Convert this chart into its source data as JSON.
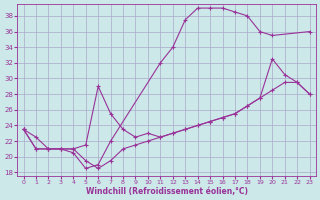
{
  "xlabel": "Windchill (Refroidissement éolien,°C)",
  "bg_color": "#cce8e8",
  "grid_color": "#aaaacc",
  "line_color": "#993399",
  "xlim": [
    -0.5,
    23.5
  ],
  "ylim": [
    17.5,
    39.5
  ],
  "yticks": [
    18,
    20,
    22,
    24,
    26,
    28,
    30,
    32,
    34,
    36,
    38
  ],
  "xticks": [
    0,
    1,
    2,
    3,
    4,
    5,
    6,
    7,
    8,
    9,
    10,
    11,
    12,
    13,
    14,
    15,
    16,
    17,
    18,
    19,
    20,
    21,
    22,
    23
  ],
  "curve1_x": [
    0,
    1,
    2,
    3,
    4,
    5,
    6,
    7,
    11,
    12,
    13,
    14,
    15,
    16,
    17,
    18,
    19,
    20,
    23
  ],
  "curve1_y": [
    23.5,
    22.5,
    21.0,
    21.0,
    20.5,
    18.5,
    19.0,
    22.0,
    32.0,
    34.0,
    37.5,
    39.0,
    39.0,
    39.0,
    38.5,
    38.0,
    36.0,
    35.5,
    36.0
  ],
  "curve2_x": [
    0,
    1,
    2,
    3,
    4,
    5,
    6,
    7,
    8,
    9,
    10,
    11,
    12,
    13,
    14,
    15,
    16,
    17,
    18,
    19,
    20,
    21,
    22,
    23
  ],
  "curve2_y": [
    23.5,
    21.0,
    21.0,
    21.0,
    21.0,
    21.5,
    29.0,
    25.5,
    23.5,
    22.5,
    23.0,
    22.5,
    23.0,
    23.5,
    24.0,
    24.5,
    25.0,
    25.5,
    26.5,
    27.5,
    32.5,
    30.5,
    29.5,
    28.0
  ],
  "curve3_x": [
    0,
    1,
    2,
    3,
    4,
    5,
    6,
    7,
    8,
    9,
    10,
    11,
    12,
    13,
    14,
    15,
    16,
    17,
    18,
    19,
    20,
    21,
    22,
    23
  ],
  "curve3_y": [
    23.5,
    21.0,
    21.0,
    21.0,
    21.0,
    19.5,
    18.5,
    19.5,
    21.0,
    21.5,
    22.0,
    22.5,
    23.0,
    23.5,
    24.0,
    24.5,
    25.0,
    25.5,
    26.5,
    27.5,
    28.5,
    29.5,
    29.5,
    28.0
  ]
}
